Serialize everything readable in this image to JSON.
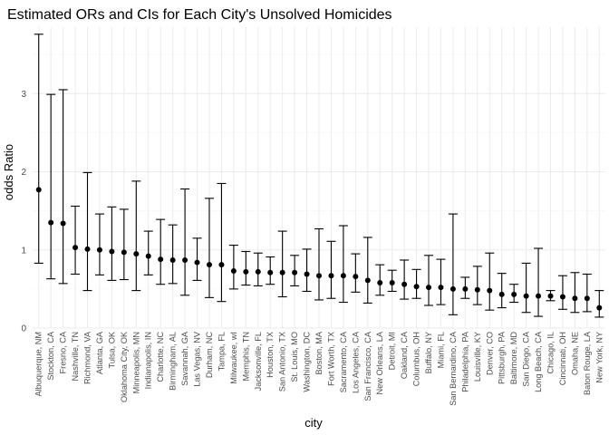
{
  "chart_data": {
    "type": "scatter",
    "title": "Estimated ORs and CIs for Each City's Unsolved Homicides",
    "xlabel": "city",
    "ylabel": "odds Ratio",
    "ylim": [
      0,
      3.85
    ],
    "yticks": [
      0,
      1,
      2,
      3
    ],
    "grid": true,
    "legend": "none",
    "error_bars": true,
    "categories": [
      "Albuquerque, NM",
      "Stockton, CA",
      "Fresno, CA",
      "Nashville, TN",
      "Richmond, VA",
      "Atlanta, GA",
      "Tulsa, OK",
      "Oklahoma City, OK",
      "Minneapolis, MN",
      "Indianapolis, IN",
      "Charlotte, NC",
      "Birmingham, AL",
      "Savannah, GA",
      "Las Vegas, NV",
      "Durham, NC",
      "Tampa, FL",
      "Milwaukee, wI",
      "Memphis, TN",
      "Jacksonville, FL",
      "Houston, TX",
      "San Antonio, TX",
      "St. Louis, MO",
      "Washington, DC",
      "Boston, MA",
      "Fort Worth, TX",
      "Sacramento, CA",
      "Los Angeles, CA",
      "San Francisco, CA",
      "New Orleans, LA",
      "Detroit, MI",
      "Oakland, CA",
      "Columbus, OH",
      "Buffalo, NY",
      "Miami, FL",
      "San Bernardino, CA",
      "Philadelphia, PA",
      "Louisville, KY",
      "Denver, CO",
      "Pittsburgh, PA",
      "Baltimore, MD",
      "San Diego, CA",
      "Long Beach, CA",
      "Chicago, IL",
      "Cincinnati, OH",
      "Omaha, NE",
      "Baton Rouge, LA",
      "New York, NY"
    ],
    "series": [
      {
        "or": [
          1.77,
          1.35,
          1.34,
          1.03,
          1.01,
          1.0,
          0.98,
          0.97,
          0.95,
          0.92,
          0.88,
          0.87,
          0.87,
          0.84,
          0.81,
          0.81,
          0.73,
          0.72,
          0.72,
          0.71,
          0.71,
          0.71,
          0.69,
          0.67,
          0.67,
          0.67,
          0.66,
          0.61,
          0.58,
          0.58,
          0.56,
          0.53,
          0.52,
          0.52,
          0.5,
          0.5,
          0.49,
          0.48,
          0.43,
          0.43,
          0.41,
          0.41,
          0.41,
          0.4,
          0.38,
          0.38,
          0.26
        ],
        "low": [
          0.83,
          0.63,
          0.57,
          0.69,
          0.48,
          0.68,
          0.61,
          0.62,
          0.48,
          0.68,
          0.56,
          0.57,
          0.42,
          0.61,
          0.39,
          0.34,
          0.5,
          0.55,
          0.54,
          0.56,
          0.4,
          0.54,
          0.47,
          0.36,
          0.38,
          0.33,
          0.46,
          0.32,
          0.42,
          0.47,
          0.37,
          0.38,
          0.29,
          0.3,
          0.17,
          0.38,
          0.3,
          0.23,
          0.26,
          0.33,
          0.2,
          0.15,
          0.35,
          0.24,
          0.2,
          0.21,
          0.14
        ],
        "high": [
          3.76,
          2.99,
          3.05,
          1.56,
          1.99,
          1.46,
          1.55,
          1.52,
          1.88,
          1.24,
          1.39,
          1.32,
          1.78,
          1.15,
          1.66,
          1.85,
          1.06,
          0.98,
          0.96,
          0.91,
          1.24,
          0.93,
          1.01,
          1.27,
          1.11,
          1.31,
          0.95,
          1.16,
          0.81,
          0.74,
          0.87,
          0.75,
          0.93,
          0.88,
          1.46,
          0.65,
          0.79,
          0.96,
          0.7,
          0.56,
          0.83,
          1.02,
          0.48,
          0.67,
          0.71,
          0.69,
          0.48
        ]
      }
    ]
  }
}
